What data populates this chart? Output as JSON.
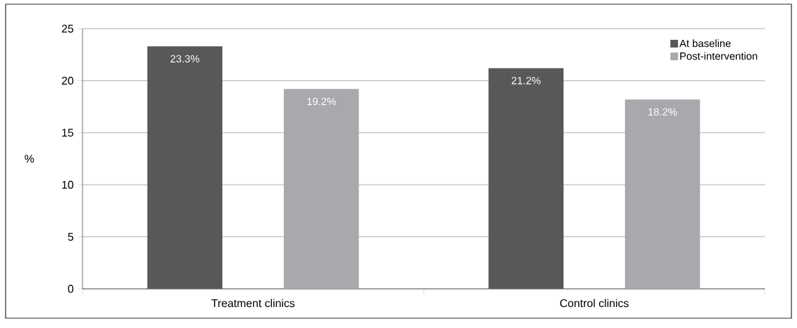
{
  "chart_data": {
    "type": "bar",
    "ylabel": "%",
    "categories": [
      "Treatment clinics",
      "Control clinics"
    ],
    "series": [
      {
        "name": "At baseline",
        "color": "#57585a",
        "values": [
          23.3,
          21.2
        ],
        "value_labels": [
          "23.3%",
          "21.2%"
        ]
      },
      {
        "name": "Post-intervention",
        "color": "#a8a9ac",
        "values": [
          19.2,
          18.2
        ],
        "value_labels": [
          "19.2%",
          "18.2%"
        ]
      }
    ],
    "ylim": [
      0,
      25
    ],
    "yticks": [
      0,
      5,
      10,
      15,
      20,
      25
    ],
    "grid": "y",
    "legend": "top right"
  }
}
